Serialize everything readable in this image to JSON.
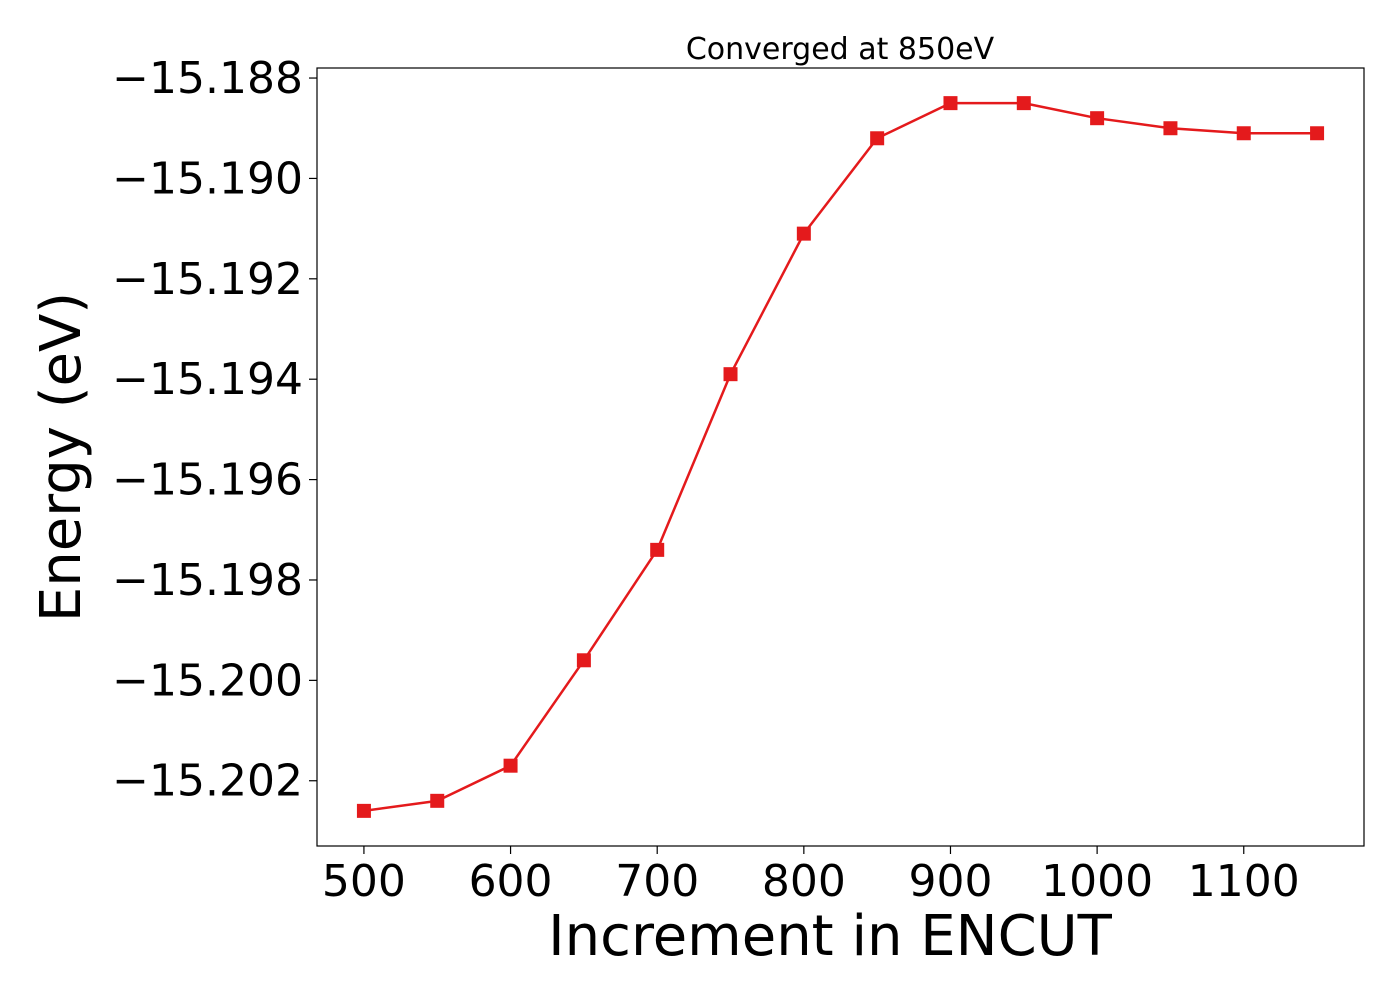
{
  "chart_data": {
    "type": "line",
    "title": "Converged at 850eV",
    "xlabel": "Increment in ENCUT",
    "ylabel": "Energy (eV)",
    "xlim": [
      468,
      1182
    ],
    "ylim": [
      -15.2033,
      -15.1878
    ],
    "xticks": [
      500,
      600,
      700,
      800,
      900,
      1000,
      1100
    ],
    "xtick_labels": [
      "500",
      "600",
      "700",
      "800",
      "900",
      "1000",
      "1100"
    ],
    "yticks": [
      -15.188,
      -15.19,
      -15.192,
      -15.194,
      -15.196,
      -15.198,
      -15.2,
      -15.202
    ],
    "ytick_labels": [
      "−15.188",
      "−15.190",
      "−15.192",
      "−15.194",
      "−15.196",
      "−15.198",
      "−15.200",
      "−15.202"
    ],
    "grid": false,
    "series": [
      {
        "color": "#e41a1c",
        "marker": "square",
        "x": [
          500,
          550,
          600,
          650,
          700,
          750,
          800,
          850,
          900,
          950,
          1000,
          1050,
          1100,
          1150
        ],
        "y": [
          -15.2026,
          -15.2024,
          -15.2017,
          -15.1996,
          -15.1974,
          -15.1939,
          -15.1911,
          -15.1892,
          -15.1885,
          -15.1885,
          -15.1888,
          -15.189,
          -15.1891,
          -15.1891
        ]
      }
    ]
  }
}
